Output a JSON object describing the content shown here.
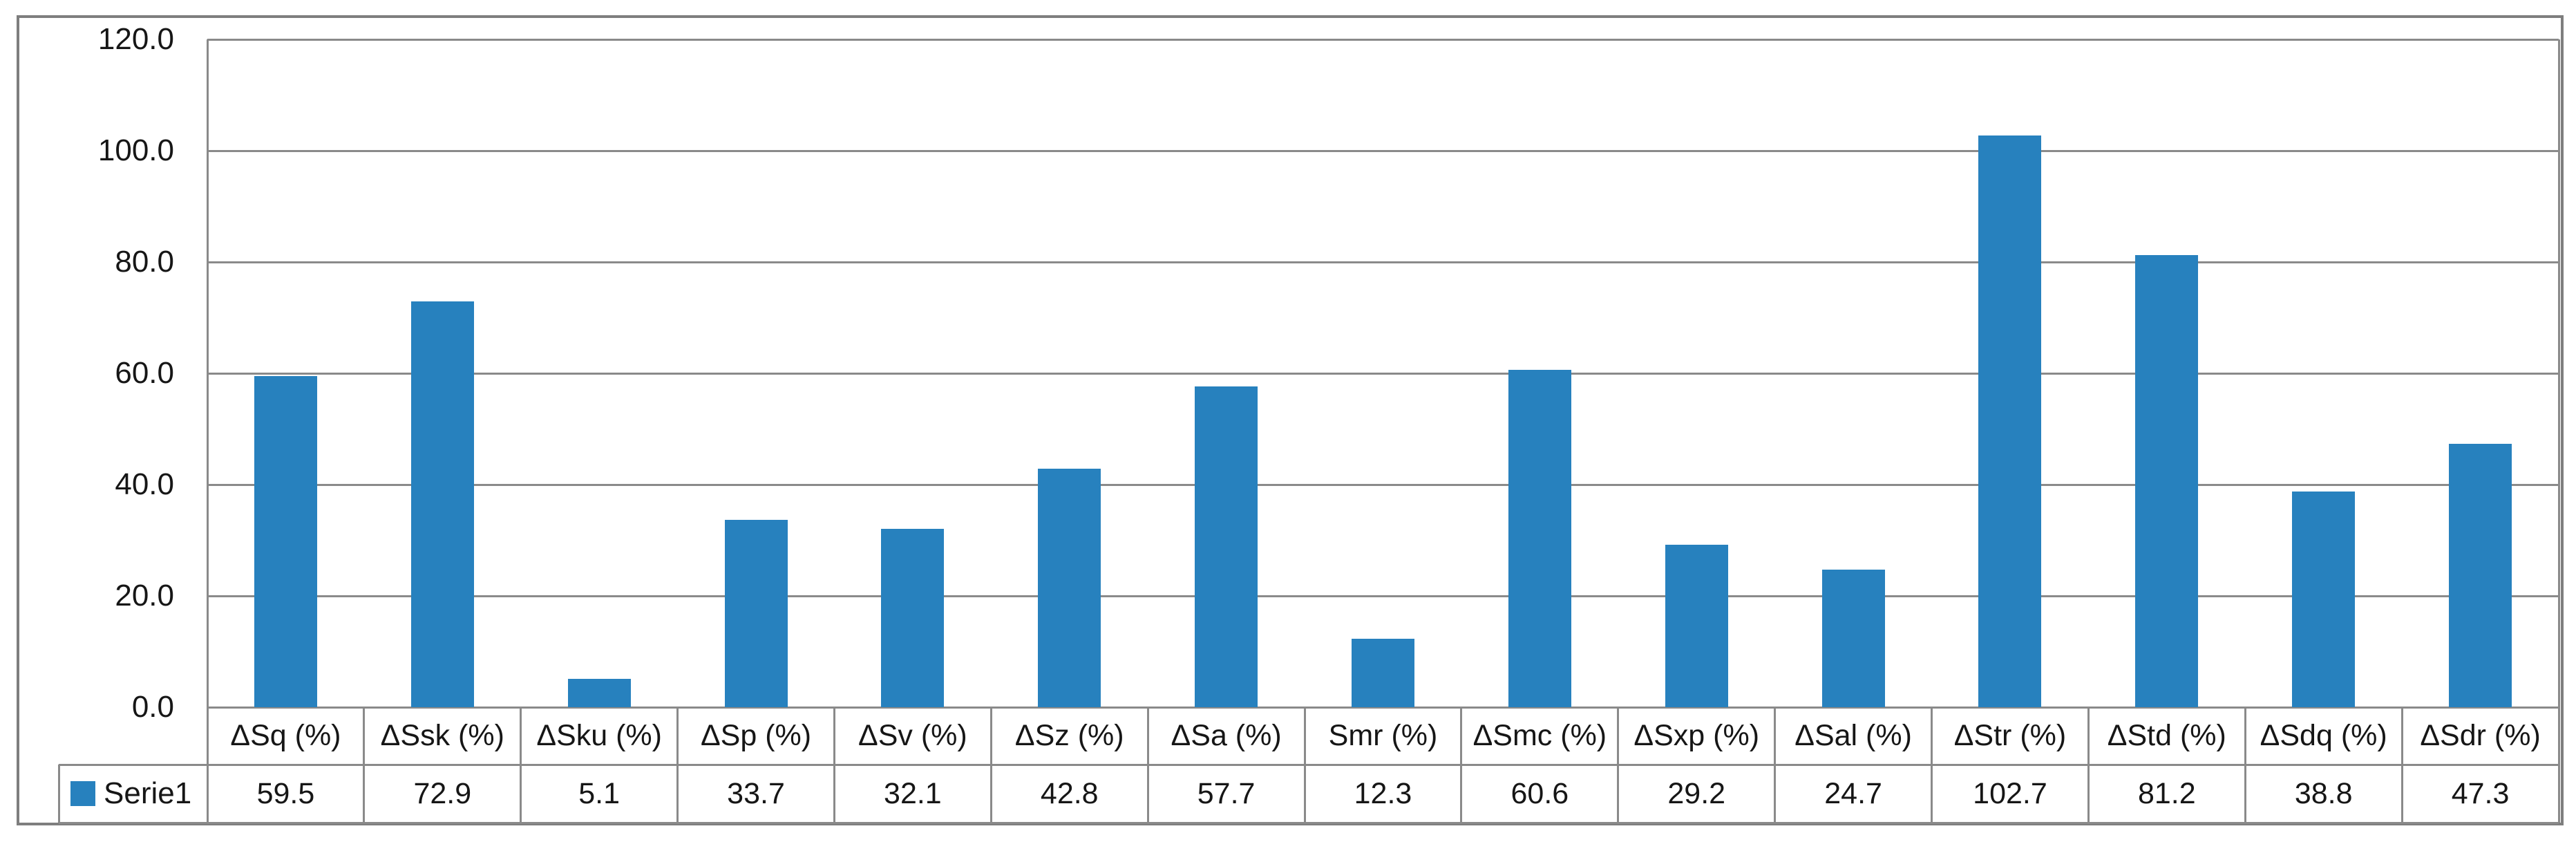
{
  "chart_data": {
    "type": "bar",
    "title": "",
    "xlabel": "",
    "ylabel": "",
    "categories": [
      "ΔSq (%)",
      "ΔSsk (%)",
      "ΔSku (%)",
      "ΔSp (%)",
      "ΔSv (%)",
      "ΔSz (%)",
      "ΔSa (%)",
      "Smr (%)",
      "ΔSmc (%)",
      "ΔSxp (%)",
      "ΔSal (%)",
      "ΔStr (%)",
      "ΔStd (%)",
      "ΔSdq (%)",
      "ΔSdr (%)"
    ],
    "series": [
      {
        "name": "Serie1",
        "values": [
          59.5,
          72.9,
          5.1,
          33.7,
          32.1,
          42.8,
          57.7,
          12.3,
          60.6,
          29.2,
          24.7,
          102.7,
          81.2,
          38.8,
          47.3
        ]
      }
    ],
    "ylim": [
      0,
      120
    ],
    "ytick_step": 20,
    "ytick_labels": [
      "120.0",
      "100.0",
      "80.0",
      "60.0",
      "40.0",
      "20.0",
      "0.0"
    ],
    "grid": "horizontal-only",
    "legend_position": "data-table-left",
    "value_decimals": 1
  },
  "colors": {
    "bar_fill": "#2781be",
    "gridline": "#8a8a8a",
    "table_border": "#8a8a8a",
    "frame_border": "#7e7e7e",
    "text": "#161616",
    "background": "#ffffff"
  }
}
